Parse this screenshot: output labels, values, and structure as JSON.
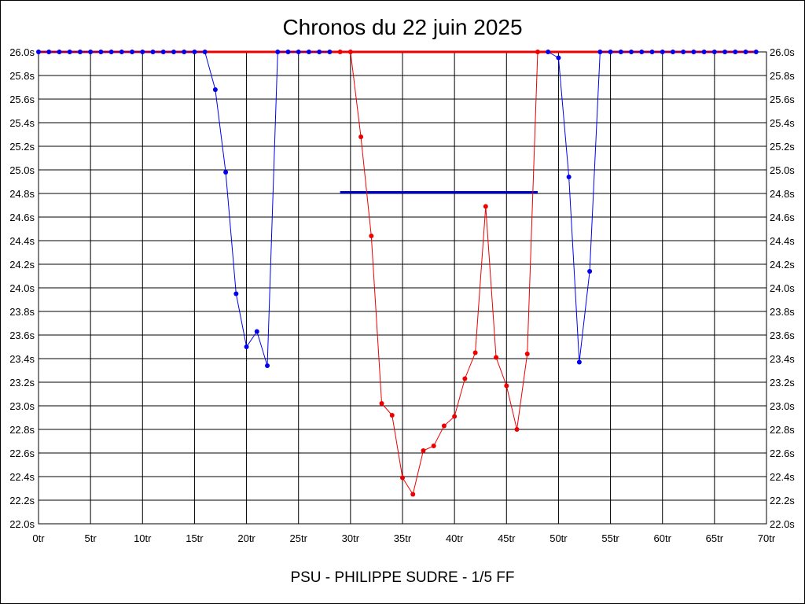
{
  "chart_data": {
    "type": "line",
    "title": "Chronos du 22 juin 2025",
    "subtitle": "PSU - PHILIPPE SUDRE - 1/5 FF",
    "xlim": [
      0,
      70
    ],
    "ylim": [
      22.0,
      26.0
    ],
    "grid": true,
    "x_ticks": [
      {
        "value": 0,
        "label": "0tr"
      },
      {
        "value": 5,
        "label": "5tr"
      },
      {
        "value": 10,
        "label": "10tr"
      },
      {
        "value": 15,
        "label": "15tr"
      },
      {
        "value": 20,
        "label": "20tr"
      },
      {
        "value": 25,
        "label": "25tr"
      },
      {
        "value": 30,
        "label": "30tr"
      },
      {
        "value": 35,
        "label": "35tr"
      },
      {
        "value": 40,
        "label": "40tr"
      },
      {
        "value": 45,
        "label": "45tr"
      },
      {
        "value": 50,
        "label": "50tr"
      },
      {
        "value": 55,
        "label": "55tr"
      },
      {
        "value": 60,
        "label": "60tr"
      },
      {
        "value": 65,
        "label": "65tr"
      },
      {
        "value": 70,
        "label": "70tr"
      }
    ],
    "y_ticks": [
      {
        "value": 22.0,
        "label": "22.0s"
      },
      {
        "value": 22.2,
        "label": "22.2s"
      },
      {
        "value": 22.4,
        "label": "22.4s"
      },
      {
        "value": 22.6,
        "label": "22.6s"
      },
      {
        "value": 22.8,
        "label": "22.8s"
      },
      {
        "value": 23.0,
        "label": "23.0s"
      },
      {
        "value": 23.2,
        "label": "23.2s"
      },
      {
        "value": 23.4,
        "label": "23.4s"
      },
      {
        "value": 23.6,
        "label": "23.6s"
      },
      {
        "value": 23.8,
        "label": "23.8s"
      },
      {
        "value": 24.0,
        "label": "24.0s"
      },
      {
        "value": 24.2,
        "label": "24.2s"
      },
      {
        "value": 24.4,
        "label": "24.4s"
      },
      {
        "value": 24.6,
        "label": "24.6s"
      },
      {
        "value": 24.8,
        "label": "24.8s"
      },
      {
        "value": 25.0,
        "label": "25.0s"
      },
      {
        "value": 25.2,
        "label": "25.2s"
      },
      {
        "value": 25.4,
        "label": "25.4s"
      },
      {
        "value": 25.6,
        "label": "25.6s"
      },
      {
        "value": 25.8,
        "label": "25.8s"
      },
      {
        "value": 26.0,
        "label": "26.0s"
      }
    ],
    "series": [
      {
        "color": "#0000ee",
        "x": [
          0,
          1,
          2,
          3,
          4,
          5,
          6,
          7,
          8,
          9,
          10,
          11,
          12,
          13,
          14,
          15,
          16,
          17,
          18,
          19,
          20,
          21,
          22,
          23,
          24,
          25,
          26,
          27,
          28
        ],
        "y": [
          26.0,
          26.0,
          26.0,
          26.0,
          26.0,
          26.0,
          26.0,
          26.0,
          26.0,
          26.0,
          26.0,
          26.0,
          26.0,
          26.0,
          26.0,
          26.0,
          26.0,
          25.68,
          24.98,
          23.95,
          23.5,
          23.63,
          23.34,
          26.0,
          26.0,
          26.0,
          26.0,
          26.0,
          26.0
        ]
      },
      {
        "color": "#ee0000",
        "x": [
          29,
          30,
          31,
          32,
          33,
          34,
          35,
          36,
          37,
          38,
          39,
          40,
          41,
          42,
          43,
          44,
          45,
          46,
          47,
          48
        ],
        "y": [
          26.0,
          26.0,
          25.28,
          24.44,
          23.02,
          22.92,
          22.39,
          22.25,
          22.62,
          22.66,
          22.83,
          22.91,
          23.23,
          23.45,
          24.69,
          23.41,
          23.17,
          22.8,
          23.44,
          26.0
        ]
      },
      {
        "color": "#0000ee",
        "x": [
          49,
          50,
          51,
          52,
          53,
          54,
          55,
          56,
          57,
          58,
          59,
          60,
          61,
          62,
          63,
          64,
          65,
          66,
          67,
          68,
          69
        ],
        "y": [
          26.0,
          25.95,
          24.94,
          23.37,
          24.14,
          26.0,
          26.0,
          26.0,
          26.0,
          26.0,
          26.0,
          26.0,
          26.0,
          26.0,
          26.0,
          26.0,
          26.0,
          26.0,
          26.0,
          26.0,
          26.0
        ]
      }
    ],
    "reference_lines": [
      {
        "color": "#ee0000",
        "x": [
          0,
          69
        ],
        "y": [
          26.0,
          26.0
        ]
      },
      {
        "color": "#0000cc",
        "x": [
          29,
          48
        ],
        "y": [
          24.81,
          24.81
        ]
      }
    ]
  }
}
